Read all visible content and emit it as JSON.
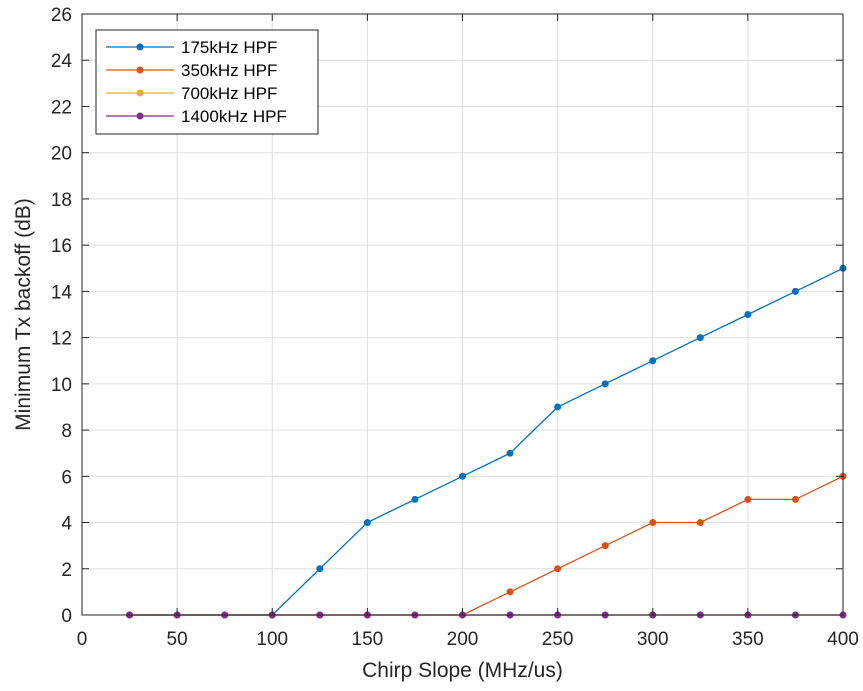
{
  "chart_data": {
    "type": "line",
    "title": "",
    "xlabel": "Chirp Slope (MHz/us)",
    "ylabel": "Minimum Tx backoff (dB)",
    "xlim": [
      0,
      400
    ],
    "ylim": [
      0,
      26
    ],
    "xticks": [
      0,
      50,
      100,
      150,
      200,
      250,
      300,
      350,
      400
    ],
    "yticks": [
      0,
      2,
      4,
      6,
      8,
      10,
      12,
      14,
      16,
      18,
      20,
      22,
      24,
      26
    ],
    "grid": true,
    "legend_position": "top-left",
    "x": [
      25,
      50,
      75,
      100,
      125,
      150,
      175,
      200,
      225,
      250,
      275,
      300,
      325,
      350,
      375,
      400
    ],
    "series": [
      {
        "name": "175kHz HPF",
        "color": "#0072BD",
        "values": [
          0,
          0,
          0,
          0,
          2,
          4,
          5,
          6,
          7,
          9,
          10,
          11,
          12,
          13,
          14,
          15
        ]
      },
      {
        "name": "350kHz HPF",
        "color": "#D95319",
        "values": [
          0,
          0,
          0,
          0,
          0,
          0,
          0,
          0,
          1,
          2,
          3,
          4,
          4,
          5,
          5,
          6
        ]
      },
      {
        "name": "700kHz HPF",
        "color": "#EDB120",
        "values": [
          0,
          0,
          0,
          0,
          0,
          0,
          0,
          0,
          0,
          0,
          0,
          0,
          0,
          0,
          0,
          0
        ]
      },
      {
        "name": "1400kHz HPF",
        "color": "#7E2F8E",
        "values": [
          0,
          0,
          0,
          0,
          0,
          0,
          0,
          0,
          0,
          0,
          0,
          0,
          0,
          0,
          0,
          0
        ]
      }
    ]
  }
}
